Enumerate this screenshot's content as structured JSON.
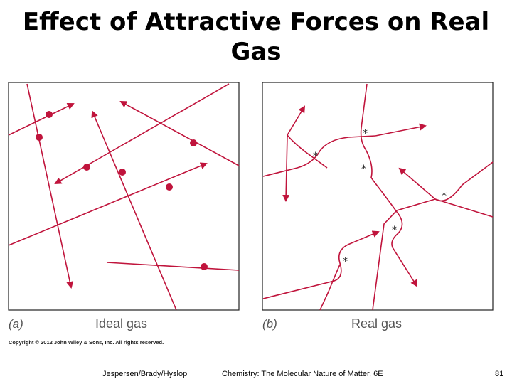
{
  "title": {
    "line1": "Effect of Attractive Forces on Real",
    "line2": "Gas"
  },
  "figure": {
    "panel_a": {
      "letter": "(a)",
      "caption": "Ideal gas"
    },
    "panel_b": {
      "letter": "(b)",
      "caption": "Real gas"
    },
    "copyright": "Copyright © 2012 John Wiley & Sons, Inc. All rights reserved.",
    "interaction_marker": "*",
    "colors": {
      "trajectory": "#c0143c",
      "frame": "#222222",
      "caption": "#555555"
    }
  },
  "footer": {
    "authors": "Jespersen/Brady/Hyslop",
    "book": "Chemistry: The Molecular Nature of Matter, 6E",
    "page": "81"
  }
}
